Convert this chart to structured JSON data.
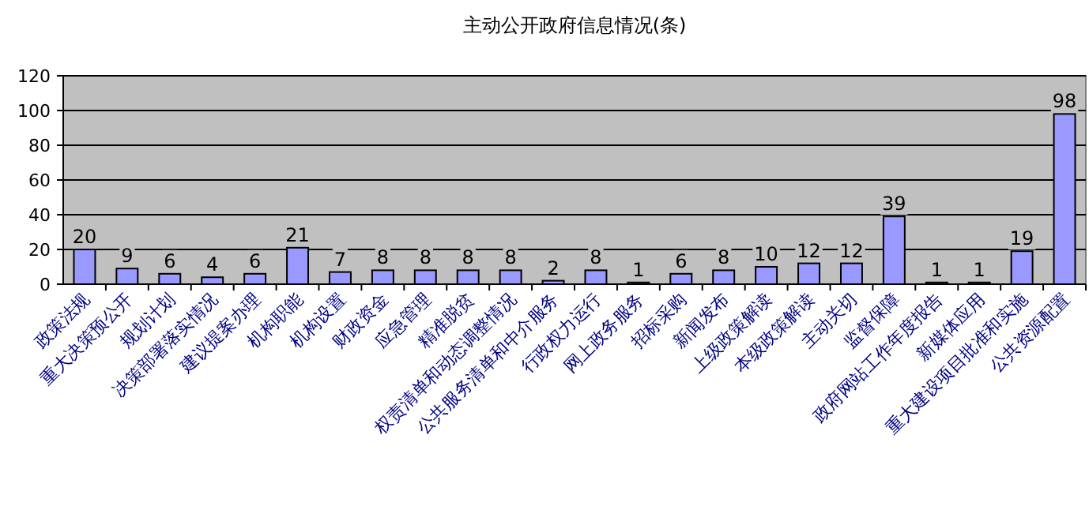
{
  "chart_data": {
    "type": "bar",
    "title": "主动公开政府信息情况(条)",
    "categories": [
      "政策法规",
      "重大决策预公开",
      "规划计划",
      "决策部署落实情况",
      "建议提案办理",
      "机构职能",
      "机构设置",
      "财政资金",
      "应急管理",
      "精准脱贫",
      "权责清单和动态调整情况",
      "公共服务清单和中介服务",
      "行政权力运行",
      "网上政务服务",
      "招标采购",
      "新闻发布",
      "上级政策解读",
      "本级政策解读",
      "主动关切",
      "监督保障",
      "政府网站工作年度报告",
      "新媒体应用",
      "重大建设项目批准和实施",
      "公共资源配置"
    ],
    "values": [
      20,
      9,
      6,
      4,
      6,
      21,
      7,
      8,
      8,
      8,
      8,
      2,
      8,
      1,
      6,
      8,
      10,
      12,
      12,
      39,
      1,
      1,
      19,
      98
    ],
    "color": "#9999ff",
    "ylim": [
      0,
      120
    ],
    "yticks": [
      0,
      20,
      40,
      60,
      80,
      100,
      120
    ],
    "grid": "y",
    "data_labels": true
  }
}
